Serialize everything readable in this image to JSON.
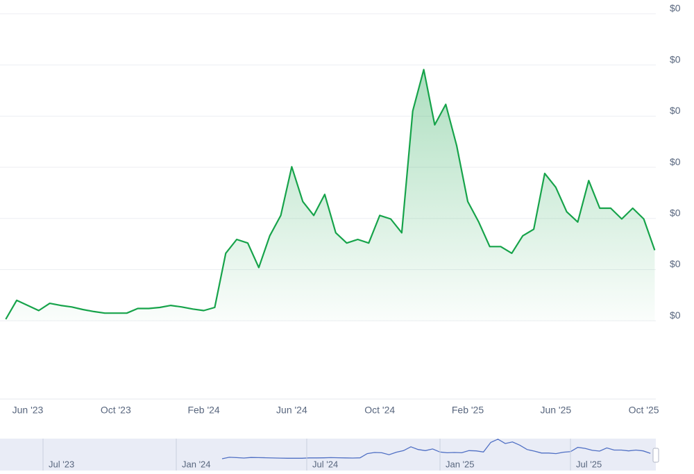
{
  "chart_data": {
    "type": "line",
    "x": [
      null,
      null,
      "Jun '23",
      null,
      null,
      null,
      null,
      null,
      null,
      null,
      "Oct '23",
      null,
      null,
      null,
      null,
      null,
      null,
      null,
      "Feb '24",
      null,
      null,
      null,
      null,
      null,
      null,
      null,
      "Jun '24",
      null,
      null,
      null,
      null,
      null,
      null,
      null,
      "Oct '24",
      null,
      null,
      null,
      null,
      null,
      null,
      null,
      "Feb '25",
      null,
      null,
      null,
      null,
      null,
      null,
      null,
      "Jun '25",
      null,
      null,
      null,
      null,
      null,
      null,
      null,
      "Oct '25",
      null
    ],
    "series": [
      {
        "color": "#16a34a",
        "values": [
          1.03,
          1.4,
          1.3,
          1.2,
          1.34,
          1.3,
          1.27,
          1.22,
          1.18,
          1.15,
          1.15,
          1.15,
          1.24,
          1.24,
          1.26,
          1.3,
          1.27,
          1.23,
          1.2,
          1.26,
          2.32,
          2.59,
          2.52,
          2.04,
          2.66,
          3.06,
          4.01,
          3.33,
          3.06,
          3.47,
          2.72,
          2.52,
          2.59,
          2.52,
          3.06,
          2.99,
          2.72,
          5.1,
          5.91,
          4.83,
          5.23,
          4.42,
          3.33,
          2.93,
          2.45,
          2.45,
          2.32,
          2.66,
          2.79,
          3.88,
          3.61,
          3.13,
          2.93,
          3.74,
          3.2,
          3.2,
          2.99,
          3.2,
          2.99,
          2.38
        ]
      }
    ],
    "ylim": [
      -0.53,
      7.27
    ],
    "yticks": [
      {
        "value": 1,
        "label": "$0"
      },
      {
        "value": 2,
        "label": "$0"
      },
      {
        "value": 3,
        "label": "$0"
      },
      {
        "value": 4,
        "label": "$0"
      },
      {
        "value": 5,
        "label": "$0"
      },
      {
        "value": 6,
        "label": "$0"
      },
      {
        "value": 7,
        "label": "$0"
      }
    ],
    "grid": true,
    "navigator": {
      "color": "#4f6fc4",
      "labels": [
        "Jul '23",
        "Jan '24",
        "Jul '24",
        "Jan '25",
        "Jul '25"
      ]
    }
  }
}
